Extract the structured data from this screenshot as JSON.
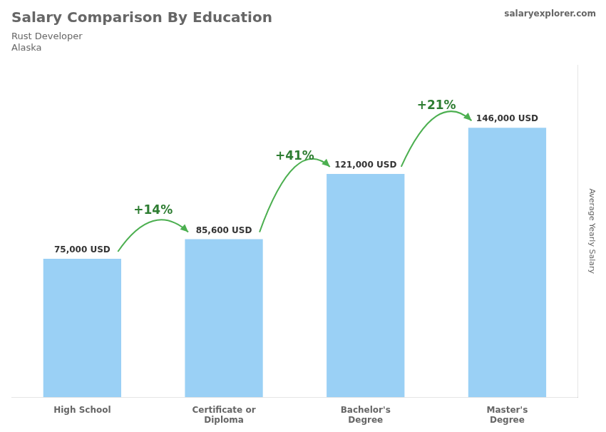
{
  "chart_data": {
    "type": "bar",
    "title": "Salary Comparison By Education",
    "subtitle": [
      "Rust Developer",
      "Alaska"
    ],
    "source": "salaryexplorer.com",
    "ylabel": "Average Yearly Salary",
    "categories": [
      "High School",
      "Certificate or\nDiploma",
      "Bachelor's\nDegree",
      "Master's\nDegree"
    ],
    "values": [
      75000,
      85600,
      121000,
      146000
    ],
    "value_labels": [
      "75,000 USD",
      "85,600 USD",
      "121,000 USD",
      "146,000 USD"
    ],
    "data_labels": true,
    "annotations": [
      "+14%",
      "+41%",
      "+21%"
    ],
    "ylim": [
      0,
      180000
    ],
    "tick_labels": "x",
    "grid": false
  }
}
